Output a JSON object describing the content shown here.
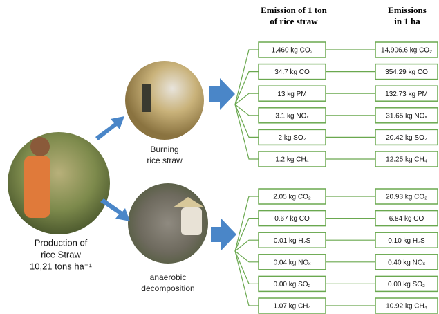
{
  "headers": {
    "per_ton": [
      "Emission of 1 ton",
      "of rice straw"
    ],
    "per_ha": [
      "Emissions",
      "in 1 ha"
    ]
  },
  "source": {
    "label": [
      "Production of",
      "rice Straw",
      "10,21 tons ha⁻¹"
    ]
  },
  "groups": [
    {
      "label": [
        "Burning",
        "rice straw"
      ],
      "rows": [
        {
          "per_ton": "1,460 kg CO₂",
          "per_ha": "14,906.6 kg CO₂"
        },
        {
          "per_ton": "34.7 kg CO",
          "per_ha": "354.29 kg CO"
        },
        {
          "per_ton": "13 kg PM",
          "per_ha": "132.73 kg PM"
        },
        {
          "per_ton": "3.1 kg NOₓ",
          "per_ha": "31.65 kg NOₓ"
        },
        {
          "per_ton": "2 kg SO₂",
          "per_ha": "20.42 kg SO₂"
        },
        {
          "per_ton": "1.2 kg CH₄",
          "per_ha": "12.25 kg CH₄"
        }
      ]
    },
    {
      "label": [
        "anaerobic",
        "decomposition"
      ],
      "rows": [
        {
          "per_ton": "2.05 kg CO₂",
          "per_ha": "20.93 kg CO₂"
        },
        {
          "per_ton": "0.67 kg CO",
          "per_ha": "6.84 kg CO"
        },
        {
          "per_ton": "0.01 kg H₂S",
          "per_ha": "0.10 kg H₂S"
        },
        {
          "per_ton": "0.04 kg NOₓ",
          "per_ha": "0.40 kg NOₓ"
        },
        {
          "per_ton": "0.00 kg SO₂",
          "per_ha": "0.00 kg SO₂"
        },
        {
          "per_ton": "1.07 kg CH₄",
          "per_ha": "10.92 kg CH₄"
        }
      ]
    }
  ]
}
